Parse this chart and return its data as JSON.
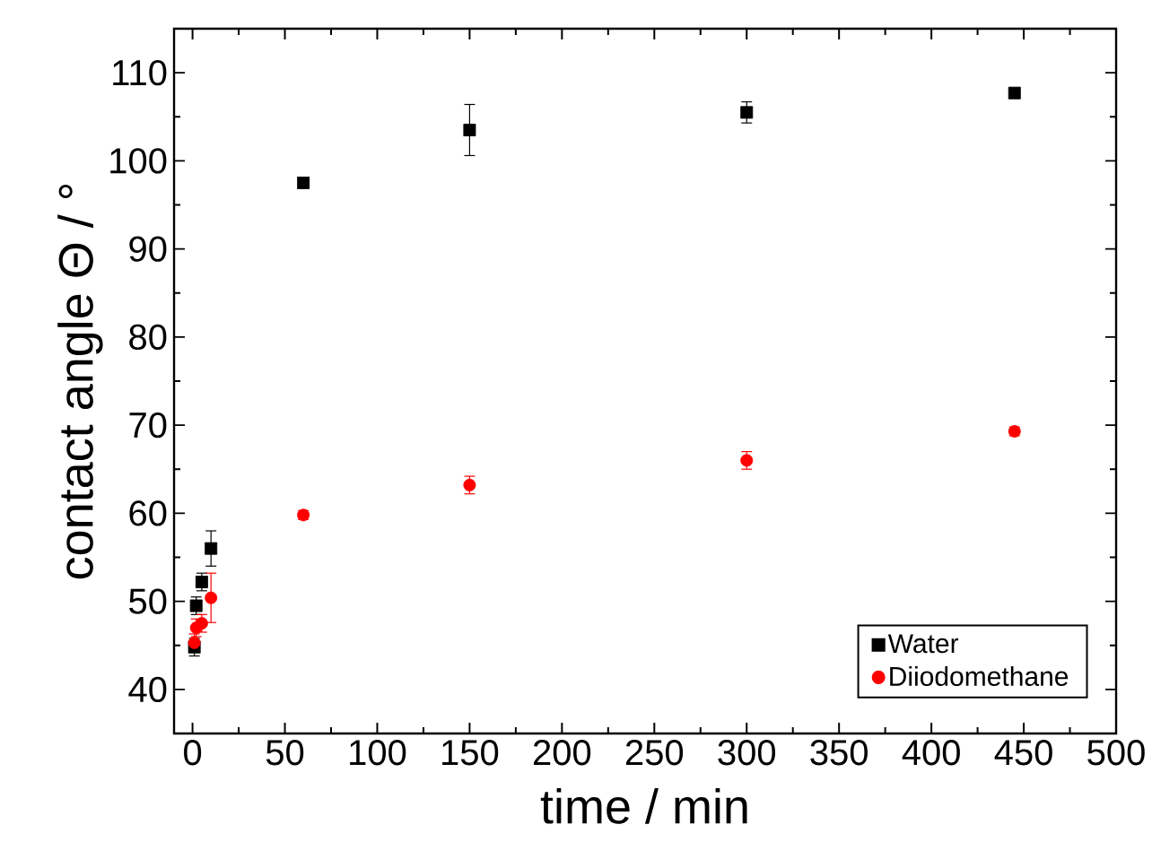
{
  "chart_data": {
    "type": "scatter",
    "xlabel": "time / min",
    "ylabel": "contact angle Θ / °",
    "xlim": [
      -10,
      500
    ],
    "xticks": [
      0,
      50,
      100,
      150,
      200,
      250,
      300,
      350,
      400,
      450,
      500
    ],
    "ylim": [
      35,
      115
    ],
    "yticks": [
      40,
      50,
      60,
      70,
      80,
      90,
      100,
      110
    ],
    "x": [
      1,
      2,
      5,
      10,
      60,
      150,
      300,
      445
    ],
    "series": [
      {
        "name": "Water",
        "color": "#000000",
        "marker": "square",
        "values": [
          44.8,
          49.5,
          52.2,
          56.0,
          97.5,
          103.5,
          105.5,
          107.7
        ],
        "errors": [
          1,
          1,
          1,
          2,
          0.5,
          2.9,
          1.2,
          0.5
        ]
      },
      {
        "name": "Diiodomethane",
        "color": "#ff0000",
        "marker": "circle",
        "values": [
          45.3,
          47.0,
          47.5,
          50.4,
          59.8,
          63.2,
          66.0,
          69.3
        ],
        "errors": [
          1,
          1,
          1,
          2.8,
          0.5,
          1,
          1,
          0.5
        ]
      }
    ],
    "legend": "bottom right",
    "grid": false
  }
}
